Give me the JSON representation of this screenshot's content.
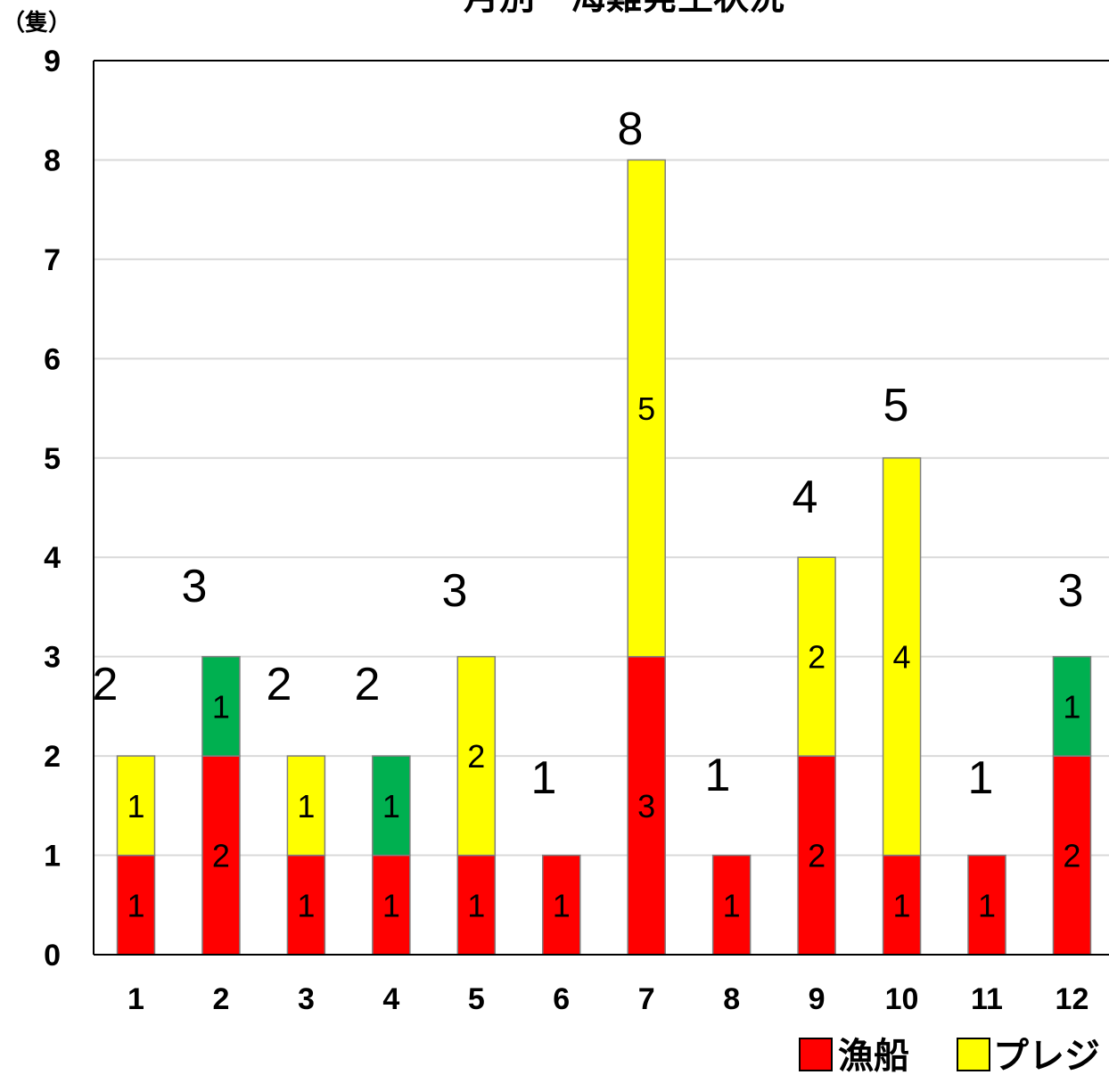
{
  "chart_data": {
    "type": "bar",
    "stacked": true,
    "title": "月別　海難発生状況",
    "ylabel": "（隻）",
    "xlabel": "",
    "ylim": [
      0,
      9
    ],
    "yticks": [
      "0",
      "1",
      "2",
      "3",
      "4",
      "5",
      "6",
      "7",
      "8",
      "9"
    ],
    "grid": true,
    "categories": [
      "1",
      "2",
      "3",
      "4",
      "5",
      "6",
      "7",
      "8",
      "9",
      "10",
      "11",
      "12"
    ],
    "series": [
      {
        "name": "漁船",
        "color": "#ff0000",
        "values": [
          1,
          2,
          1,
          1,
          1,
          1,
          3,
          1,
          2,
          1,
          1,
          2
        ]
      },
      {
        "name": "プレジ",
        "color": "#ffff00",
        "values": [
          1,
          0,
          1,
          0,
          2,
          0,
          5,
          0,
          2,
          4,
          0,
          0
        ]
      },
      {
        "name": "",
        "color": "#00b050",
        "values": [
          0,
          1,
          0,
          1,
          0,
          0,
          0,
          0,
          0,
          0,
          0,
          1
        ]
      }
    ],
    "totals": [
      "2",
      "3",
      "2",
      "2",
      "3",
      "1",
      "8",
      "1",
      "4",
      "5",
      "1",
      "3"
    ],
    "legend_placement": "bottom-right"
  }
}
